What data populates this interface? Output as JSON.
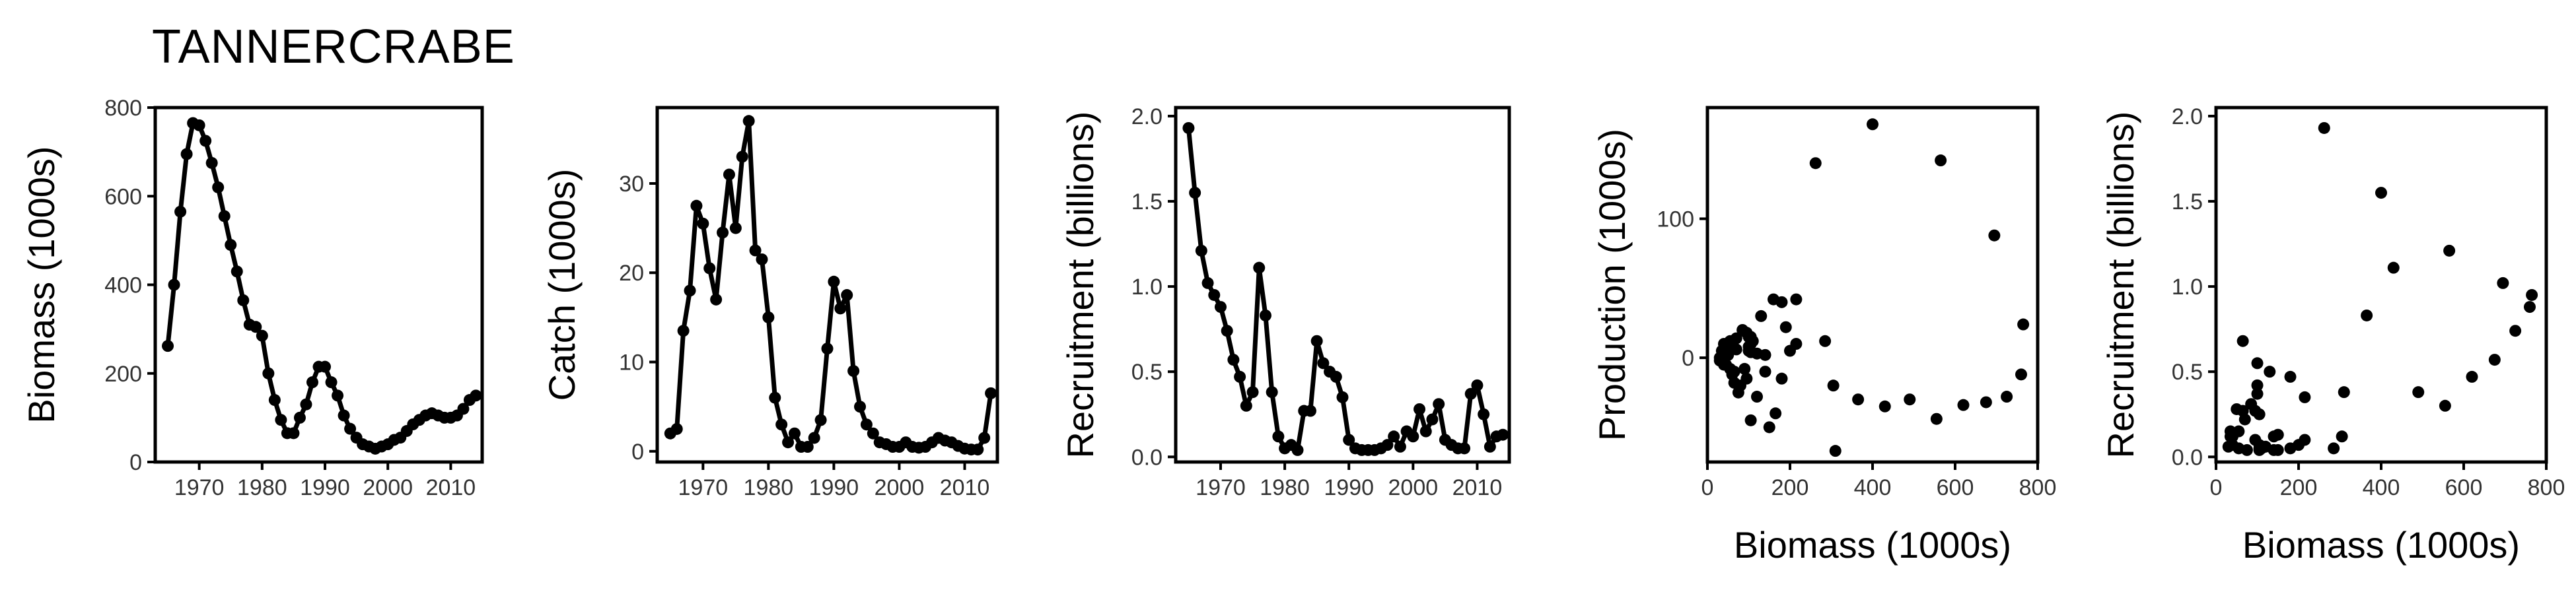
{
  "title": "TANNERCRABE",
  "chart_data": [
    {
      "type": "line",
      "xlabel": "",
      "ylabel": "Biomass (1000s)",
      "xlim": [
        1963,
        2015
      ],
      "ylim": [
        0,
        800
      ],
      "xticks": [
        1970,
        1980,
        1990,
        2000,
        2010
      ],
      "yticks": [
        0,
        200,
        400,
        600,
        800
      ],
      "xticklabels": [
        "1970",
        "1980",
        "1990",
        "2000",
        "2010"
      ],
      "yticklabels": [
        "0",
        "200",
        "400",
        "600",
        "800"
      ],
      "grid": false,
      "series": [
        {
          "x": [
            1965,
            1966,
            1967,
            1968,
            1969,
            1970,
            1971,
            1972,
            1973,
            1974,
            1975,
            1976,
            1977,
            1978,
            1979,
            1980,
            1981,
            1982,
            1983,
            1984,
            1985,
            1986,
            1987,
            1988,
            1989,
            1990,
            1991,
            1992,
            1993,
            1994,
            1995,
            1996,
            1997,
            1998,
            1999,
            2000,
            2001,
            2002,
            2003,
            2004,
            2005,
            2006,
            2007,
            2008,
            2009,
            2010,
            2011,
            2012,
            2013,
            2014
          ],
          "y": [
            262,
            400,
            565,
            695,
            765,
            760,
            725,
            675,
            620,
            555,
            490,
            430,
            365,
            310,
            305,
            285,
            200,
            140,
            95,
            65,
            65,
            100,
            130,
            180,
            215,
            215,
            180,
            150,
            105,
            75,
            55,
            40,
            35,
            30,
            35,
            40,
            50,
            55,
            70,
            85,
            95,
            105,
            110,
            105,
            100,
            100,
            105,
            120,
            140,
            150
          ]
        }
      ]
    },
    {
      "type": "line",
      "xlabel": "",
      "ylabel": "Catch (1000s)",
      "xlim": [
        1963,
        2015
      ],
      "ylim": [
        -1.2,
        38.5
      ],
      "xticks": [
        1970,
        1980,
        1990,
        2000,
        2010
      ],
      "yticks": [
        0,
        10,
        20,
        30
      ],
      "xticklabels": [
        "1970",
        "1980",
        "1990",
        "2000",
        "2010"
      ],
      "yticklabels": [
        "0",
        "10",
        "20",
        "30"
      ],
      "grid": false,
      "series": [
        {
          "x": [
            1965,
            1966,
            1967,
            1968,
            1969,
            1970,
            1971,
            1972,
            1973,
            1974,
            1975,
            1976,
            1977,
            1978,
            1979,
            1980,
            1981,
            1982,
            1983,
            1984,
            1985,
            1986,
            1987,
            1988,
            1989,
            1990,
            1991,
            1992,
            1993,
            1994,
            1995,
            1996,
            1997,
            1998,
            1999,
            2000,
            2001,
            2002,
            2003,
            2004,
            2005,
            2006,
            2007,
            2008,
            2009,
            2010,
            2011,
            2012,
            2013,
            2014
          ],
          "y": [
            2,
            2.5,
            13.5,
            18,
            27.5,
            25.5,
            20.5,
            17,
            24.5,
            31,
            25,
            33,
            37,
            22.5,
            21.5,
            15,
            6,
            3,
            1,
            2,
            0.5,
            0.5,
            1.5,
            3.5,
            11.5,
            19,
            16,
            17.5,
            9,
            5,
            3,
            2,
            1,
            0.8,
            0.5,
            0.5,
            1,
            0.5,
            0.4,
            0.5,
            1,
            1.5,
            1.2,
            1,
            0.6,
            0.3,
            0.2,
            0.2,
            1.5,
            6.5
          ]
        }
      ]
    },
    {
      "type": "line",
      "xlabel": "",
      "ylabel": "Recruitment (billions)",
      "xlim": [
        1963,
        2015
      ],
      "ylim": [
        -0.03,
        2.05
      ],
      "xticks": [
        1970,
        1980,
        1990,
        2000,
        2010
      ],
      "yticks": [
        0.0,
        0.5,
        1.0,
        1.5,
        2.0
      ],
      "xticklabels": [
        "1970",
        "1980",
        "1990",
        "2000",
        "2010"
      ],
      "yticklabels": [
        "0.0",
        "0.5",
        "1.0",
        "1.5",
        "2.0"
      ],
      "grid": false,
      "series": [
        {
          "x": [
            1965,
            1966,
            1967,
            1968,
            1969,
            1970,
            1971,
            1972,
            1973,
            1974,
            1975,
            1976,
            1977,
            1978,
            1979,
            1980,
            1981,
            1982,
            1983,
            1984,
            1985,
            1986,
            1987,
            1988,
            1989,
            1990,
            1991,
            1992,
            1993,
            1994,
            1995,
            1996,
            1997,
            1998,
            1999,
            2000,
            2001,
            2002,
            2003,
            2004,
            2005,
            2006,
            2007,
            2008,
            2009,
            2010,
            2011,
            2012,
            2013,
            2014
          ],
          "y": [
            1.93,
            1.55,
            1.21,
            1.02,
            0.95,
            0.88,
            0.74,
            0.57,
            0.47,
            0.3,
            0.38,
            1.11,
            0.83,
            0.38,
            0.12,
            0.05,
            0.07,
            0.04,
            0.27,
            0.27,
            0.68,
            0.55,
            0.5,
            0.47,
            0.35,
            0.1,
            0.05,
            0.04,
            0.04,
            0.04,
            0.05,
            0.07,
            0.12,
            0.06,
            0.15,
            0.12,
            0.28,
            0.15,
            0.22,
            0.31,
            0.1,
            0.07,
            0.05,
            0.05,
            0.37,
            0.42,
            0.25,
            0.06,
            0.12,
            0.13
          ]
        }
      ]
    },
    {
      "type": "scatter",
      "xlabel": "Biomass (1000s)",
      "ylabel": "Production (1000s)",
      "xlim": [
        0,
        800
      ],
      "ylim": [
        -75,
        180
      ],
      "xticks": [
        0,
        200,
        400,
        600,
        800
      ],
      "yticks": [
        0,
        100
      ],
      "xticklabels": [
        "0",
        "200",
        "400",
        "600",
        "800"
      ],
      "yticklabels": [
        "0",
        "100"
      ],
      "grid": false,
      "series": [
        {
          "x": [
            262,
            400,
            565,
            695,
            765,
            760,
            725,
            675,
            620,
            555,
            490,
            430,
            365,
            310,
            305,
            285,
            200,
            140,
            95,
            65,
            65,
            100,
            130,
            180,
            215,
            215,
            180,
            150,
            105,
            75,
            55,
            40,
            35,
            30,
            35,
            40,
            50,
            55,
            70,
            85,
            95,
            105,
            110,
            105,
            100,
            100,
            105,
            120,
            140,
            160,
            190,
            45,
            60,
            80,
            30,
            50,
            70,
            90,
            120,
            165
          ],
          "y": [
            140,
            168,
            142,
            88,
            24,
            -12,
            -28,
            -32,
            -34,
            -44,
            -30,
            -35,
            -30,
            -67,
            -20,
            12,
            5,
            -10,
            -15,
            -18,
            -10,
            15,
            30,
            40,
            42,
            10,
            -15,
            -50,
            -45,
            -25,
            -8,
            -5,
            -2,
            0,
            5,
            10,
            8,
            12,
            14,
            20,
            18,
            15,
            12,
            10,
            8,
            5,
            4,
            3,
            2,
            42,
            22,
            -5,
            -12,
            -20,
            -2,
            2,
            6,
            -8,
            -28,
            -40
          ]
        }
      ]
    },
    {
      "type": "scatter",
      "xlabel": "Biomass (1000s)",
      "ylabel": "Recruitment (billions)",
      "xlim": [
        0,
        800
      ],
      "ylim": [
        -0.03,
        2.05
      ],
      "xticks": [
        0,
        200,
        400,
        600,
        800
      ],
      "yticks": [
        0.0,
        0.5,
        1.0,
        1.5,
        2.0
      ],
      "xticklabels": [
        "0",
        "200",
        "400",
        "600",
        "800"
      ],
      "yticklabels": [
        "0.0",
        "0.5",
        "1.0",
        "1.5",
        "2.0"
      ],
      "grid": false,
      "series": [
        {
          "x": [
            262,
            400,
            565,
            695,
            765,
            760,
            725,
            675,
            620,
            555,
            490,
            430,
            365,
            310,
            305,
            285,
            200,
            140,
            95,
            65,
            65,
            100,
            130,
            180,
            215,
            215,
            180,
            150,
            105,
            75,
            55,
            40,
            35,
            30,
            35,
            40,
            50,
            55,
            70,
            85,
            95,
            105,
            110,
            105,
            100,
            100,
            105,
            120,
            140,
            150
          ],
          "y": [
            1.93,
            1.55,
            1.21,
            1.02,
            0.95,
            0.88,
            0.74,
            0.57,
            0.47,
            0.3,
            0.38,
            1.11,
            0.83,
            0.38,
            0.12,
            0.05,
            0.07,
            0.04,
            0.27,
            0.27,
            0.68,
            0.55,
            0.5,
            0.47,
            0.35,
            0.1,
            0.05,
            0.04,
            0.04,
            0.04,
            0.05,
            0.07,
            0.12,
            0.06,
            0.15,
            0.12,
            0.28,
            0.15,
            0.22,
            0.31,
            0.1,
            0.07,
            0.05,
            0.05,
            0.37,
            0.42,
            0.25,
            0.06,
            0.12,
            0.13
          ]
        }
      ]
    }
  ]
}
